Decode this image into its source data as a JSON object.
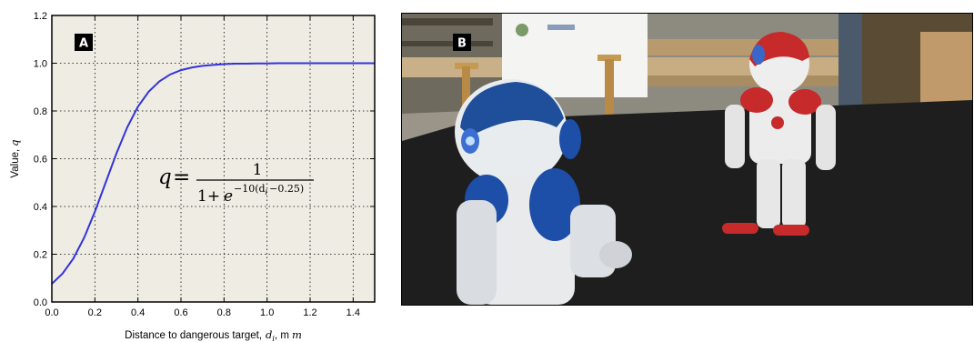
{
  "panels": {
    "left_label": "A",
    "right_label": "B"
  },
  "formula": {
    "lhs": "q",
    "eq": "=",
    "numerator": "1",
    "den_prefix": "1+",
    "den_base": "e",
    "den_exponent": "−10(d",
    "den_exponent_sub": "i",
    "den_exponent_tail": "−0.25)"
  },
  "colors": {
    "plot_background": "#efece4",
    "curve": "#3333dd",
    "grid": "#000000"
  },
  "chart_data": {
    "type": "line",
    "xlabel_text": "Distance to dangerous target,",
    "xlabel_math": "d",
    "xlabel_sub": "i",
    "xlabel_unit": ", m",
    "ylabel_text": "Value,",
    "ylabel_math": "q",
    "xlim": [
      0.0,
      1.5
    ],
    "ylim": [
      0.0,
      1.2
    ],
    "xticks": [
      "0.0",
      "0.2",
      "0.4",
      "0.6",
      "0.8",
      "1.0",
      "1.2",
      "1.4"
    ],
    "xtick_values": [
      0.0,
      0.2,
      0.4,
      0.6,
      0.8,
      1.0,
      1.2,
      1.4
    ],
    "yticks": [
      "0.0",
      "0.2",
      "0.4",
      "0.6",
      "0.8",
      "1.0",
      "1.2"
    ],
    "ytick_values": [
      0.0,
      0.2,
      0.4,
      0.6,
      0.8,
      1.0,
      1.2
    ],
    "grid": true,
    "series": [
      {
        "x": [
          0.0,
          0.05,
          0.1,
          0.15,
          0.2,
          0.25,
          0.3,
          0.35,
          0.4,
          0.45,
          0.5,
          0.55,
          0.6,
          0.65,
          0.7,
          0.75,
          0.8,
          0.85,
          0.9,
          0.95,
          1.0,
          1.05,
          1.1,
          1.15,
          1.2,
          1.25,
          1.3,
          1.35,
          1.4,
          1.45,
          1.5
        ],
        "y": [
          0.076,
          0.119,
          0.182,
          0.269,
          0.378,
          0.5,
          0.622,
          0.731,
          0.818,
          0.881,
          0.924,
          0.953,
          0.971,
          0.982,
          0.989,
          0.993,
          0.996,
          0.998,
          0.998,
          0.999,
          0.999,
          1.0,
          1.0,
          1.0,
          1.0,
          1.0,
          1.0,
          1.0,
          1.0,
          1.0,
          1.0
        ]
      }
    ]
  }
}
